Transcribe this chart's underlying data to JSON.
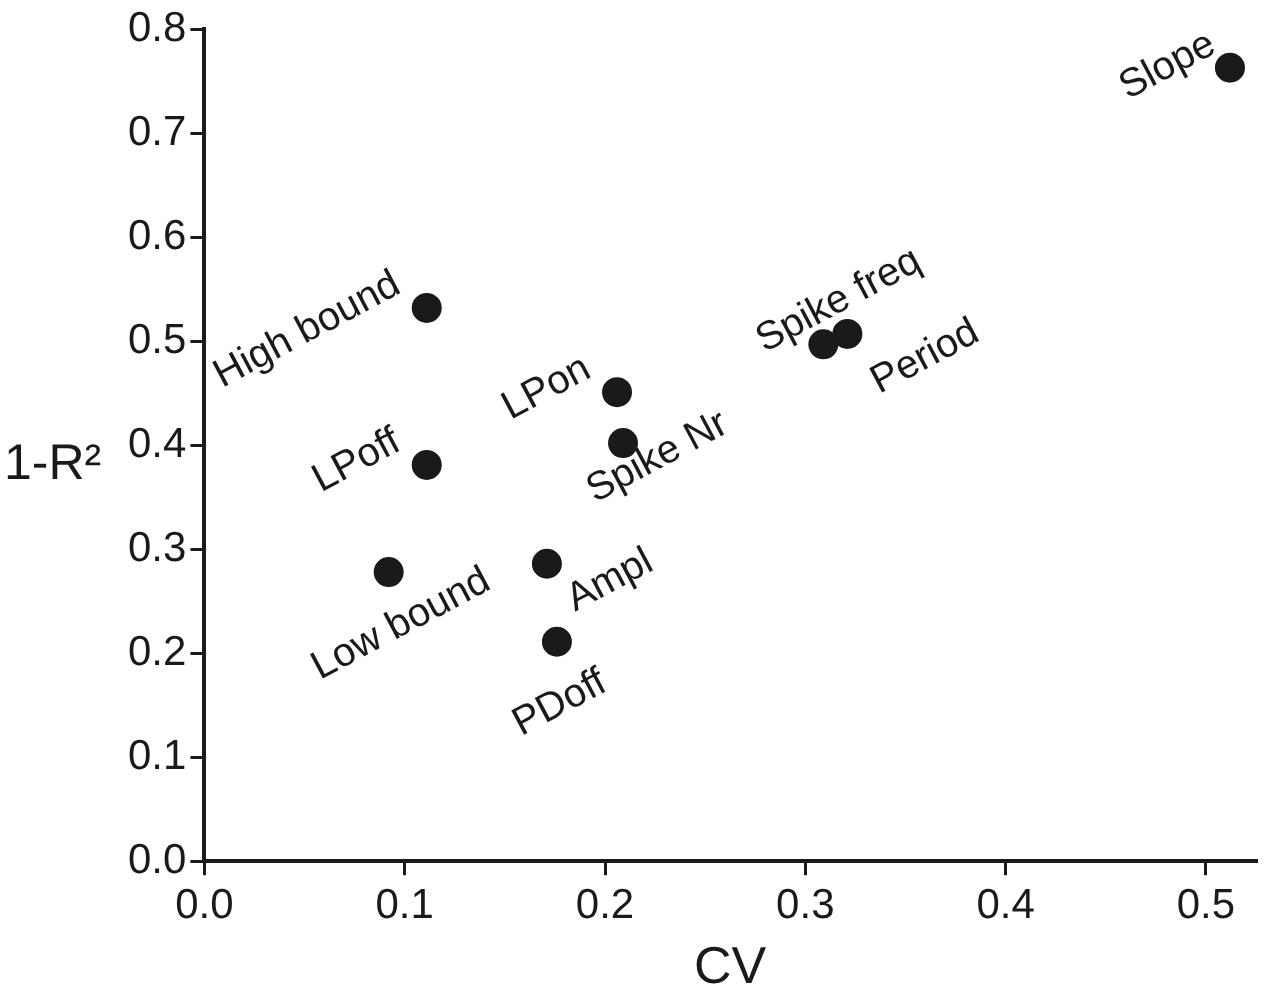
{
  "chart_data": {
    "type": "scatter",
    "xlabel": "CV",
    "ylabel": "1-R²",
    "x": [
      0.111,
      0.111,
      0.206,
      0.209,
      0.092,
      0.171,
      0.176,
      0.309,
      0.321,
      0.512
    ],
    "series": [
      {
        "color": "#1a1a1a",
        "values": [
          0.532,
          0.381,
          0.451,
          0.402,
          0.278,
          0.286,
          0.211,
          0.497,
          0.507,
          0.763
        ]
      }
    ],
    "annotations": [
      {
        "text": "High bound",
        "x": 0.111,
        "y": 0.532
      },
      {
        "text": "LPoff",
        "x": 0.111,
        "y": 0.381
      },
      {
        "text": "LPon",
        "x": 0.206,
        "y": 0.451
      },
      {
        "text": "Spike Nr",
        "x": 0.209,
        "y": 0.402
      },
      {
        "text": "Low bound",
        "x": 0.092,
        "y": 0.278
      },
      {
        "text": "Ampl",
        "x": 0.171,
        "y": 0.286
      },
      {
        "text": "PDoff",
        "x": 0.176,
        "y": 0.211
      },
      {
        "text": "Spike freq",
        "x": 0.309,
        "y": 0.497
      },
      {
        "text": "Period",
        "x": 0.321,
        "y": 0.507
      },
      {
        "text": "Slope",
        "x": 0.512,
        "y": 0.763
      }
    ],
    "xlim": [
      0,
      0.525
    ],
    "ylim": [
      0,
      0.8
    ],
    "xticks": [
      {
        "value": 0,
        "label": "0.0"
      },
      0.1,
      0.2,
      0.3,
      0.4,
      0.5
    ],
    "yticks": [
      {
        "value": 0,
        "label": "0.0"
      },
      0.1,
      0.2,
      0.3,
      0.4,
      0.5,
      0.6,
      0.7,
      0.8
    ],
    "marker": "circle",
    "grid": false,
    "legend": false
  }
}
